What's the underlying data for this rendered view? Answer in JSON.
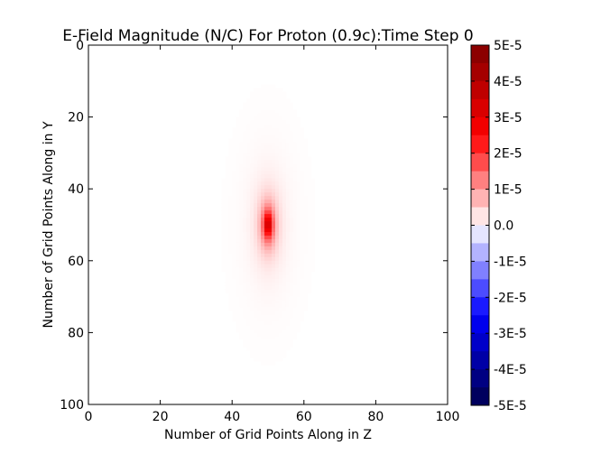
{
  "chart_data": {
    "type": "heatmap",
    "title": "E-Field Magnitude (N/C) For Proton (0.9c):Time Step 0",
    "xlabel": "Number of Grid Points Along in Z",
    "ylabel": "Number of Grid Points Along in Y",
    "xlim": [
      0,
      100
    ],
    "ylim": [
      100,
      0
    ],
    "grid_size": [
      100,
      100
    ],
    "x_ticks": [
      0,
      20,
      40,
      60,
      80,
      100
    ],
    "y_ticks": [
      0,
      20,
      40,
      60,
      80,
      100
    ],
    "colormap": "seismic",
    "value_range": [
      -5e-05,
      5e-05
    ],
    "peak": {
      "z": 50,
      "y": 50,
      "value": 3.6e-05
    },
    "colorbar": {
      "ticks": [
        5e-05,
        4e-05,
        3e-05,
        2e-05,
        1e-05,
        0,
        -1e-05,
        -2e-05,
        -3e-05,
        -4e-05,
        -5e-05
      ],
      "tick_labels": [
        "5E-5",
        "4E-5",
        "3E-5",
        "2E-5",
        "1E-5",
        "0.0",
        "-1E-5",
        "-2E-5",
        "-3E-5",
        "-4E-5",
        "-5E-5"
      ]
    }
  }
}
